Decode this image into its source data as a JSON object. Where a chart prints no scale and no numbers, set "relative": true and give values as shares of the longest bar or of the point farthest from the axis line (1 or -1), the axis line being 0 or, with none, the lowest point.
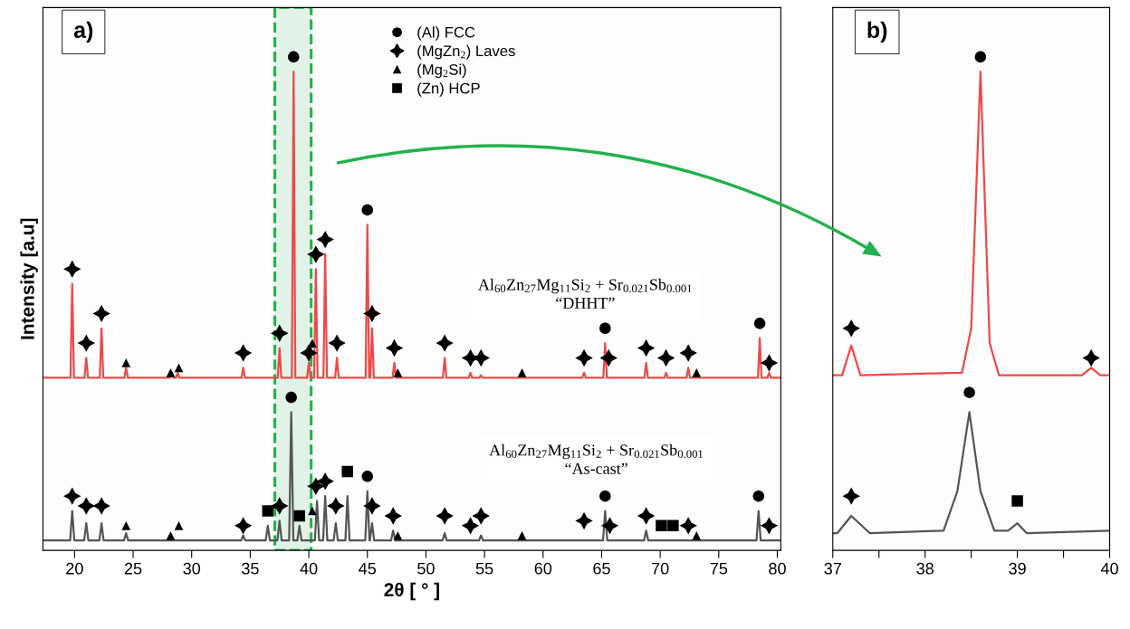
{
  "chart_data": [
    {
      "type": "line",
      "relative": true,
      "xlabel": "2θ [ ° ]",
      "ylabel": "Intensity [a.u]",
      "xlim": [
        17.3,
        80.3
      ],
      "xticks": [
        20,
        25,
        30,
        35,
        40,
        45,
        50,
        55,
        60,
        65,
        70,
        75,
        80
      ],
      "legend": "top",
      "grid": false,
      "annotations": [
        "a)",
        "Al$_{60}$Zn$_{27}$Mg$_{11}$Si$_{2}$ + Sr$_{0.021}$Sb$_{0.001}$\n“DHHT”",
        "Al$_{60}$Zn$_{27}$Mg$_{11}$Si$_{2}$ + Sr$_{0.021}$Sb$_{0.001}$\n“As-cast”"
      ],
      "bands": [
        {
          "axis": "x",
          "from": 37.1,
          "to": 40.2,
          "color": "#22b14c"
        }
      ],
      "series": [
        {
          "color": "#f04848",
          "x": [
            17.3,
            19.65,
            19.8,
            19.95,
            20.85,
            21.0,
            21.15,
            22.15,
            22.3,
            22.45,
            24.25,
            24.4,
            24.55,
            28.15,
            28.3,
            28.45,
            28.65,
            28.8,
            28.95,
            34.25,
            34.4,
            34.55,
            37.35,
            37.5,
            37.65,
            38.55,
            38.7,
            38.85,
            39.85,
            40.0,
            40.15,
            40.45,
            40.6,
            40.75,
            41.25,
            41.4,
            41.55,
            42.25,
            42.4,
            42.55,
            44.85,
            45.0,
            45.15,
            45.25,
            45.4,
            45.55,
            47.15,
            47.3,
            47.45,
            51.45,
            51.6,
            51.75,
            53.65,
            53.8,
            53.95,
            54.55,
            54.7,
            54.85,
            63.35,
            63.5,
            63.65,
            65.15,
            65.3,
            65.45,
            68.65,
            68.8,
            68.95,
            70.35,
            70.5,
            70.65,
            72.25,
            72.4,
            72.55,
            78.35,
            78.5,
            78.65,
            79.15,
            79.3,
            79.45,
            80.3
          ],
          "values": [
            0.35,
            0.35,
            0.54,
            0.35,
            0.35,
            0.39,
            0.35,
            0.35,
            0.45,
            0.35,
            0.35,
            0.37,
            0.35,
            0.35,
            0.36,
            0.35,
            0.35,
            0.36,
            0.35,
            0.35,
            0.37,
            0.35,
            0.35,
            0.41,
            0.35,
            0.35,
            0.97,
            0.35,
            0.35,
            0.38,
            0.35,
            0.35,
            0.57,
            0.35,
            0.35,
            0.6,
            0.35,
            0.35,
            0.39,
            0.35,
            0.35,
            0.66,
            0.35,
            0.35,
            0.45,
            0.35,
            0.35,
            0.38,
            0.35,
            0.35,
            0.39,
            0.35,
            0.35,
            0.36,
            0.35,
            0.35,
            0.355,
            0.35,
            0.35,
            0.36,
            0.35,
            0.35,
            0.42,
            0.35,
            0.35,
            0.38,
            0.35,
            0.35,
            0.36,
            0.35,
            0.35,
            0.37,
            0.35,
            0.35,
            0.43,
            0.35,
            0.35,
            0.36,
            0.35,
            0.35
          ]
        },
        {
          "color": "#555555",
          "x": [
            17.3,
            19.62,
            19.8,
            19.98,
            20.82,
            21.0,
            21.18,
            22.12,
            22.3,
            22.48,
            24.22,
            24.4,
            24.58,
            34.22,
            34.4,
            34.58,
            36.32,
            36.5,
            36.68,
            37.32,
            37.5,
            37.68,
            38.32,
            38.5,
            38.68,
            39.02,
            39.2,
            39.38,
            40.52,
            40.7,
            40.88,
            41.22,
            41.4,
            41.58,
            42.12,
            42.3,
            42.48,
            43.12,
            43.3,
            43.48,
            44.82,
            45.0,
            45.18,
            45.22,
            45.4,
            45.58,
            47.02,
            47.2,
            47.38,
            51.42,
            51.6,
            51.78,
            54.52,
            54.7,
            54.88,
            65.12,
            65.3,
            65.48,
            68.62,
            68.8,
            68.98,
            78.22,
            78.4,
            78.58,
            80.3
          ],
          "values": [
            0.02,
            0.02,
            0.08,
            0.02,
            0.02,
            0.055,
            0.02,
            0.02,
            0.055,
            0.02,
            0.02,
            0.035,
            0.02,
            0.02,
            0.03,
            0.02,
            0.02,
            0.05,
            0.02,
            0.02,
            0.06,
            0.02,
            0.02,
            0.28,
            0.02,
            0.02,
            0.05,
            0.02,
            0.02,
            0.1,
            0.02,
            0.02,
            0.11,
            0.02,
            0.02,
            0.055,
            0.02,
            0.02,
            0.11,
            0.02,
            0.02,
            0.12,
            0.02,
            0.02,
            0.055,
            0.02,
            0.02,
            0.04,
            0.02,
            0.02,
            0.035,
            0.02,
            0.02,
            0.03,
            0.02,
            0.02,
            0.08,
            0.02,
            0.02,
            0.04,
            0.02,
            0.02,
            0.08,
            0.02,
            0.02
          ]
        },
        {
          "type": "scatter",
          "name": "(Al) FCC",
          "color": "#000000",
          "marker": "circle",
          "x": [
            38.7,
            45.0,
            65.3,
            78.5,
            38.5,
            45.0,
            65.3,
            78.4
          ],
          "values": [
            1.0,
            0.69,
            0.45,
            0.46,
            0.31,
            0.15,
            0.11,
            0.11
          ]
        },
        {
          "type": "scatter",
          "name": "(MgZn$_{2}$) Laves",
          "color": "#000000",
          "marker": "star",
          "x": [
            19.8,
            21.0,
            22.3,
            34.4,
            37.5,
            40.0,
            40.6,
            41.4,
            42.4,
            45.4,
            47.3,
            51.6,
            53.8,
            54.7,
            63.5,
            65.6,
            68.8,
            70.5,
            72.4,
            79.3,
            19.8,
            21.0,
            22.3,
            34.4,
            37.5,
            40.6,
            41.4,
            42.3,
            45.4,
            47.2,
            51.6,
            53.8,
            54.7,
            63.5,
            65.7,
            68.8,
            72.4,
            79.3
          ],
          "values": [
            0.57,
            0.42,
            0.48,
            0.4,
            0.44,
            0.4,
            0.6,
            0.63,
            0.42,
            0.48,
            0.41,
            0.42,
            0.39,
            0.39,
            0.39,
            0.39,
            0.41,
            0.39,
            0.4,
            0.38,
            0.11,
            0.09,
            0.09,
            0.05,
            0.09,
            0.13,
            0.14,
            0.09,
            0.09,
            0.07,
            0.07,
            0.05,
            0.07,
            0.06,
            0.05,
            0.07,
            0.05,
            0.05
          ]
        },
        {
          "type": "scatter",
          "name": "(Mg$_{2}$Si)",
          "color": "#000000",
          "marker": "triangle",
          "x": [
            24.4,
            28.2,
            28.9,
            40.3,
            47.6,
            58.2,
            73.1,
            24.4,
            28.2,
            28.9,
            40.3,
            47.6,
            58.2,
            73.1
          ],
          "values": [
            0.38,
            0.36,
            0.37,
            0.42,
            0.36,
            0.36,
            0.36,
            0.05,
            0.03,
            0.05,
            0.08,
            0.03,
            0.03,
            0.03
          ]
        },
        {
          "type": "scatter",
          "name": "(Zn) HCP",
          "color": "#000000",
          "marker": "square",
          "x": [
            36.5,
            39.2,
            43.3,
            70.1,
            71.1
          ],
          "values": [
            0.08,
            0.07,
            0.16,
            0.05,
            0.05
          ]
        }
      ]
    },
    {
      "type": "line",
      "relative": true,
      "xlim": [
        37,
        40
      ],
      "xticks": [
        37,
        {
          "value": 37.5,
          "label": null
        },
        38,
        {
          "value": 38.5,
          "label": null
        },
        39,
        {
          "value": 39.5,
          "label": null
        },
        40
      ],
      "grid": false,
      "annotations": [
        "b)"
      ],
      "series": [
        {
          "color": "#f04848",
          "x": [
            37,
            37.1,
            37.2,
            37.3,
            38.4,
            38.5,
            38.6,
            38.7,
            38.8,
            39.7,
            39.8,
            39.9,
            40
          ],
          "values": [
            0.355,
            0.355,
            0.415,
            0.355,
            0.36,
            0.45,
            0.97,
            0.42,
            0.355,
            0.355,
            0.37,
            0.355,
            0.355
          ]
        },
        {
          "color": "#555555",
          "x": [
            37,
            37.05,
            37.2,
            37.4,
            38.2,
            38.35,
            38.48,
            38.6,
            38.75,
            38.9,
            39.0,
            39.1,
            40
          ],
          "values": [
            0.035,
            0.035,
            0.07,
            0.035,
            0.04,
            0.12,
            0.28,
            0.12,
            0.04,
            0.04,
            0.055,
            0.035,
            0.04
          ]
        },
        {
          "type": "scatter",
          "color": "#000000",
          "marker": "circle",
          "x": [
            38.6,
            38.48
          ],
          "values": [
            1.0,
            0.32
          ]
        },
        {
          "type": "scatter",
          "color": "#000000",
          "marker": "star",
          "x": [
            37.2,
            39.8,
            37.2
          ],
          "values": [
            0.45,
            0.39,
            0.11
          ]
        },
        {
          "type": "scatter",
          "color": "#000000",
          "marker": "square",
          "x": [
            39.0
          ],
          "values": [
            0.1
          ]
        }
      ]
    }
  ]
}
